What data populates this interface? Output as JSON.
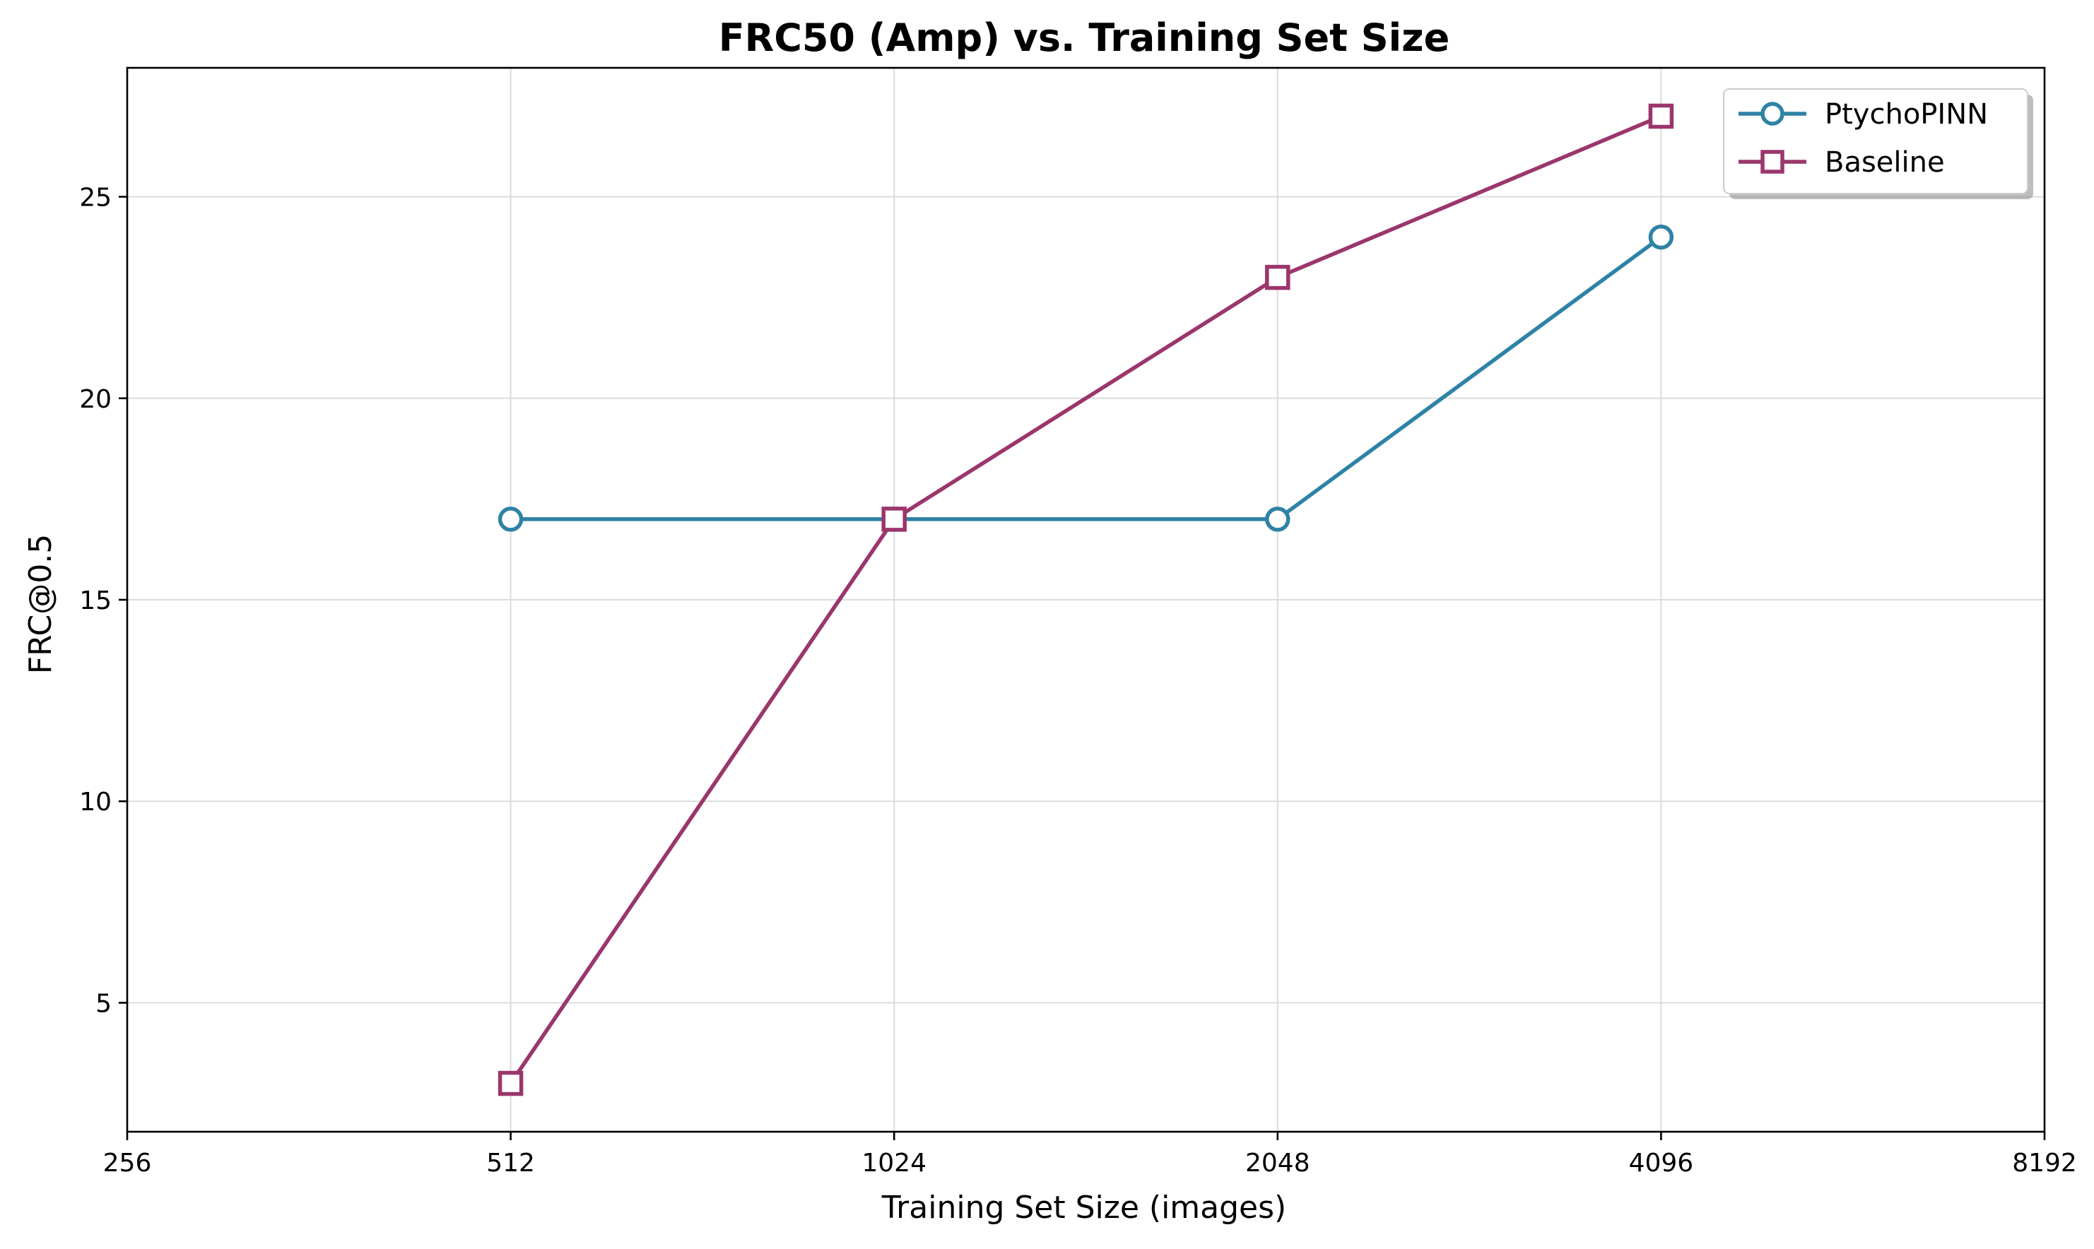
{
  "chart_data": {
    "type": "line",
    "title": "FRC50 (Amp) vs. Training Set Size",
    "xlabel": "Training Set Size (images)",
    "ylabel": "FRC@0.5",
    "x_scale": "log2",
    "xlim": [
      256,
      8192
    ],
    "ylim": [
      1.8,
      28.2
    ],
    "x_ticks": [
      256,
      512,
      1024,
      2048,
      4096,
      8192
    ],
    "x_tick_labels": [
      "256",
      "512",
      "1024",
      "2048",
      "4096",
      "8192"
    ],
    "y_ticks": [
      5,
      10,
      15,
      20,
      25
    ],
    "y_tick_labels": [
      "5",
      "10",
      "15",
      "20",
      "25"
    ],
    "grid": true,
    "legend_position": "top-right",
    "series": [
      {
        "name": "PtychoPINN",
        "color": "#2e82a6",
        "marker": "circle",
        "x": [
          512,
          1024,
          2048,
          4096
        ],
        "y": [
          17,
          17,
          17,
          24
        ]
      },
      {
        "name": "Baseline",
        "color": "#9b366c",
        "marker": "square",
        "x": [
          512,
          1024,
          2048,
          4096
        ],
        "y": [
          3,
          17,
          23,
          27
        ]
      }
    ]
  }
}
